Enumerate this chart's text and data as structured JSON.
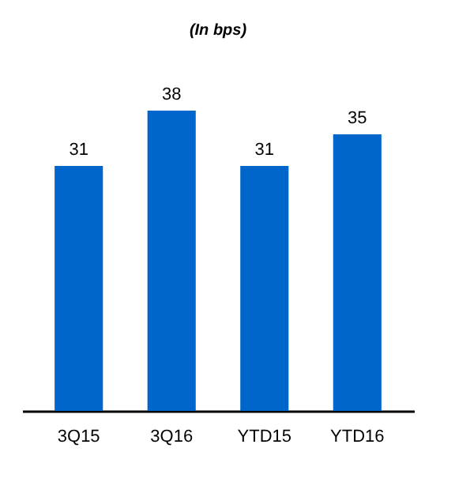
{
  "chart_data": {
    "type": "bar",
    "title": "(In bps)",
    "categories": [
      "3Q15",
      "3Q16",
      "YTD15",
      "YTD16"
    ],
    "values": [
      31,
      38,
      31,
      35
    ],
    "color": "#0066cc",
    "data_labels": true,
    "grid": false
  }
}
